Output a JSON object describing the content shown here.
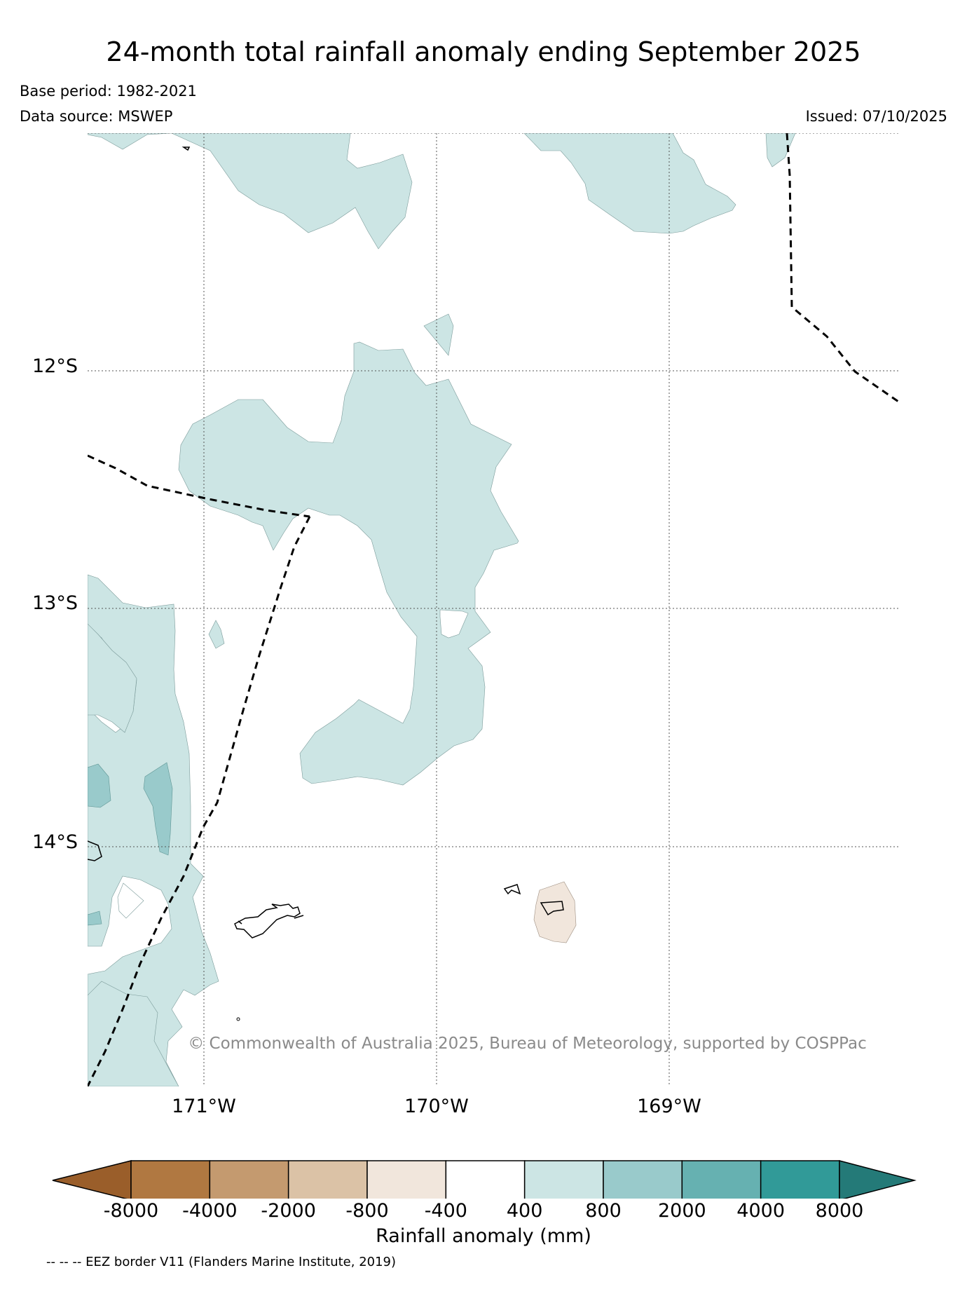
{
  "header": {
    "title": "24-month total rainfall anomaly ending September 2025",
    "base_period": "Base period: 1982-2021",
    "data_source": "Data source: MSWEP",
    "issued": "Issued: 07/10/2025"
  },
  "map": {
    "lat_labels": [
      "12°S",
      "13°S",
      "14°S"
    ],
    "lon_labels": [
      "171°W",
      "170°W",
      "169°W"
    ],
    "copyright": "© Commonwealth of Australia 2025, Bureau of Meteorology, supported by COSPPac",
    "eez_border_style": "dashed",
    "gridlines": "dotted"
  },
  "colorbar": {
    "label": "Rainfall anomaly (mm)",
    "ticks": [
      "-8000",
      "-4000",
      "-2000",
      "-800",
      "-400",
      "400",
      "800",
      "2000",
      "4000",
      "8000"
    ],
    "colors": [
      "#9a5e2a",
      "#b07841",
      "#c49a6f",
      "#dbc2a6",
      "#f1e6dc",
      "#ffffff",
      "#cce5e4",
      "#99cacb",
      "#66b1b1",
      "#319a98",
      "#247a78"
    ]
  },
  "footer": {
    "eez_note": "-- -- -- EEZ border V11 (Flanders Marine Institute, 2019)"
  }
}
